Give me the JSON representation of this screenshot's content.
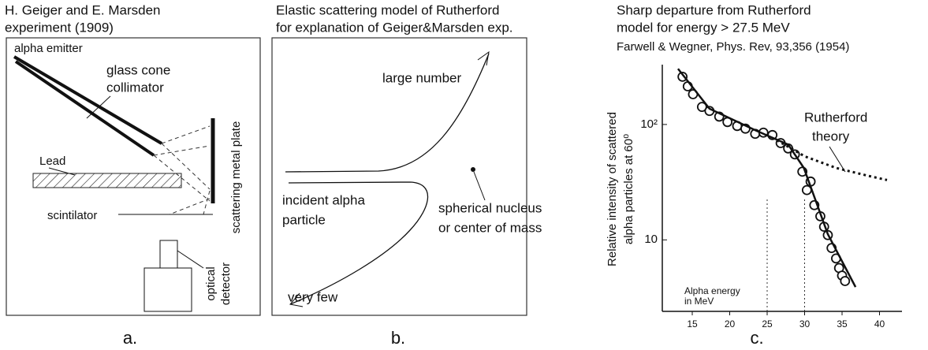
{
  "panel_a": {
    "title": [
      "H. Geiger and E. Marsden",
      "experiment (1909)"
    ],
    "emitter": "alpha emitter",
    "collimator": [
      "glass cone",
      "collimator"
    ],
    "lead": "Lead",
    "plate": "scattering metal plate",
    "scintilator": "scintilator",
    "detector": [
      "optical",
      "detector"
    ],
    "caption": "a."
  },
  "panel_b": {
    "title": [
      "Elastic scattering model of Rutherford",
      "for explanation of Geiger&Marsden exp."
    ],
    "large": "large number",
    "incident": [
      "incident alpha",
      "particle"
    ],
    "nucleus": [
      "spherical nucleus",
      "or center of mass"
    ],
    "few": "very few",
    "caption": "b."
  },
  "chart_data": {
    "type": "line",
    "title": [
      "Sharp departure from Rutherford",
      "model for energy > 27.5 MeV"
    ],
    "subtitle": "Farwell & Wegner, Phys. Rev, 93,356 (1954)",
    "ylabel": [
      "Relative intensity of scattered",
      "alpha particles at 60⁰"
    ],
    "annotations": {
      "rutherford": [
        "Rutherford",
        "theory"
      ],
      "energy": [
        "Alpha energy",
        "in MeV"
      ]
    },
    "caption": "c.",
    "xlim": [
      11,
      43
    ],
    "xticks": [
      15,
      20,
      25,
      30,
      35,
      40
    ],
    "ylim": [
      2.4,
      330
    ],
    "yscale": "log",
    "yticks": [
      10,
      {
        "value": 100,
        "label": "10²"
      }
    ],
    "reference_lines": [
      25,
      30
    ],
    "series": [
      {
        "style": "circles",
        "color": "#111",
        "x": [
          13.7,
          14.4,
          15.1,
          16.3,
          17.3,
          18.6,
          19.7,
          21.0,
          22.1,
          23.4,
          24.5,
          25.7,
          26.8,
          27.8,
          28.7,
          29.7,
          30.3,
          30.8,
          31.3,
          32.1,
          32.6,
          33.1,
          33.6,
          34.2,
          34.6,
          35.0,
          35.4
        ],
        "values": [
          259,
          214,
          183,
          142,
          131,
          117,
          105,
          97,
          92,
          83,
          85,
          81,
          69,
          62,
          55,
          39,
          27,
          32,
          20,
          16,
          13,
          11,
          8.5,
          6.9,
          5.7,
          4.9,
          4.4
        ]
      },
      {
        "style": "solid",
        "color": "#111",
        "x": [
          13.1,
          17.3,
          23.6,
          27.8,
          29.9,
          33.1,
          36.8
        ],
        "values": [
          304,
          137,
          88,
          67,
          42,
          11.2,
          3.9
        ]
      },
      {
        "style": "dotted",
        "color": "#111",
        "x": [
          26.3,
          30,
          34.2,
          38.4,
          41
        ],
        "values": [
          73,
          53,
          42,
          36,
          33
        ]
      }
    ]
  }
}
